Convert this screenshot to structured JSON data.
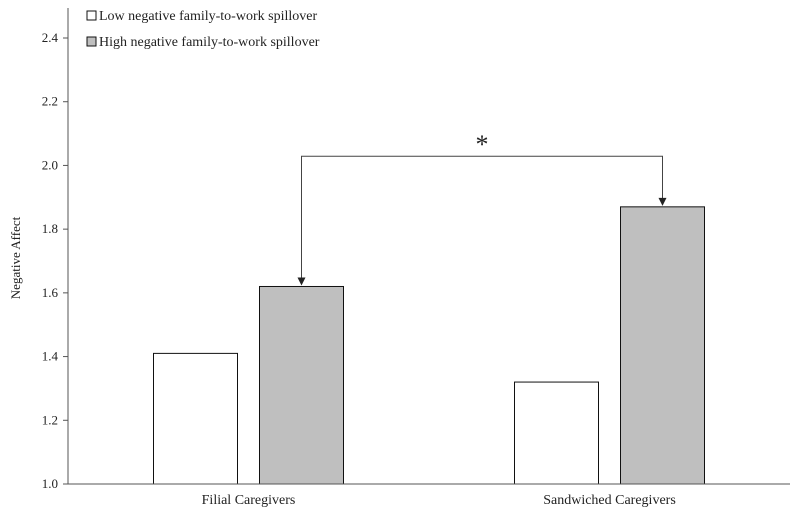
{
  "chart_data": {
    "type": "bar",
    "categories": [
      "Filial Caregivers",
      "Sandwiched Caregivers"
    ],
    "series": [
      {
        "name": "Low negative family-to-work spillover",
        "values": [
          1.41,
          1.32
        ],
        "color": "#ffffff"
      },
      {
        "name": "High negative family-to-work spillover",
        "values": [
          1.62,
          1.87
        ],
        "color": "#bfbfbf"
      }
    ],
    "ylabel": "Negative Affect",
    "xlabel": "",
    "ylim": [
      1.0,
      2.4
    ],
    "yticks": [
      "1.0",
      "1.2",
      "1.4",
      "1.6",
      "1.8",
      "2.0",
      "2.2",
      "2.4"
    ],
    "grid": false,
    "legend_placement": "top-left",
    "annotation": {
      "text": "*",
      "from_series": 1,
      "from_category": 0,
      "to_series": 1,
      "to_category": 1
    }
  }
}
